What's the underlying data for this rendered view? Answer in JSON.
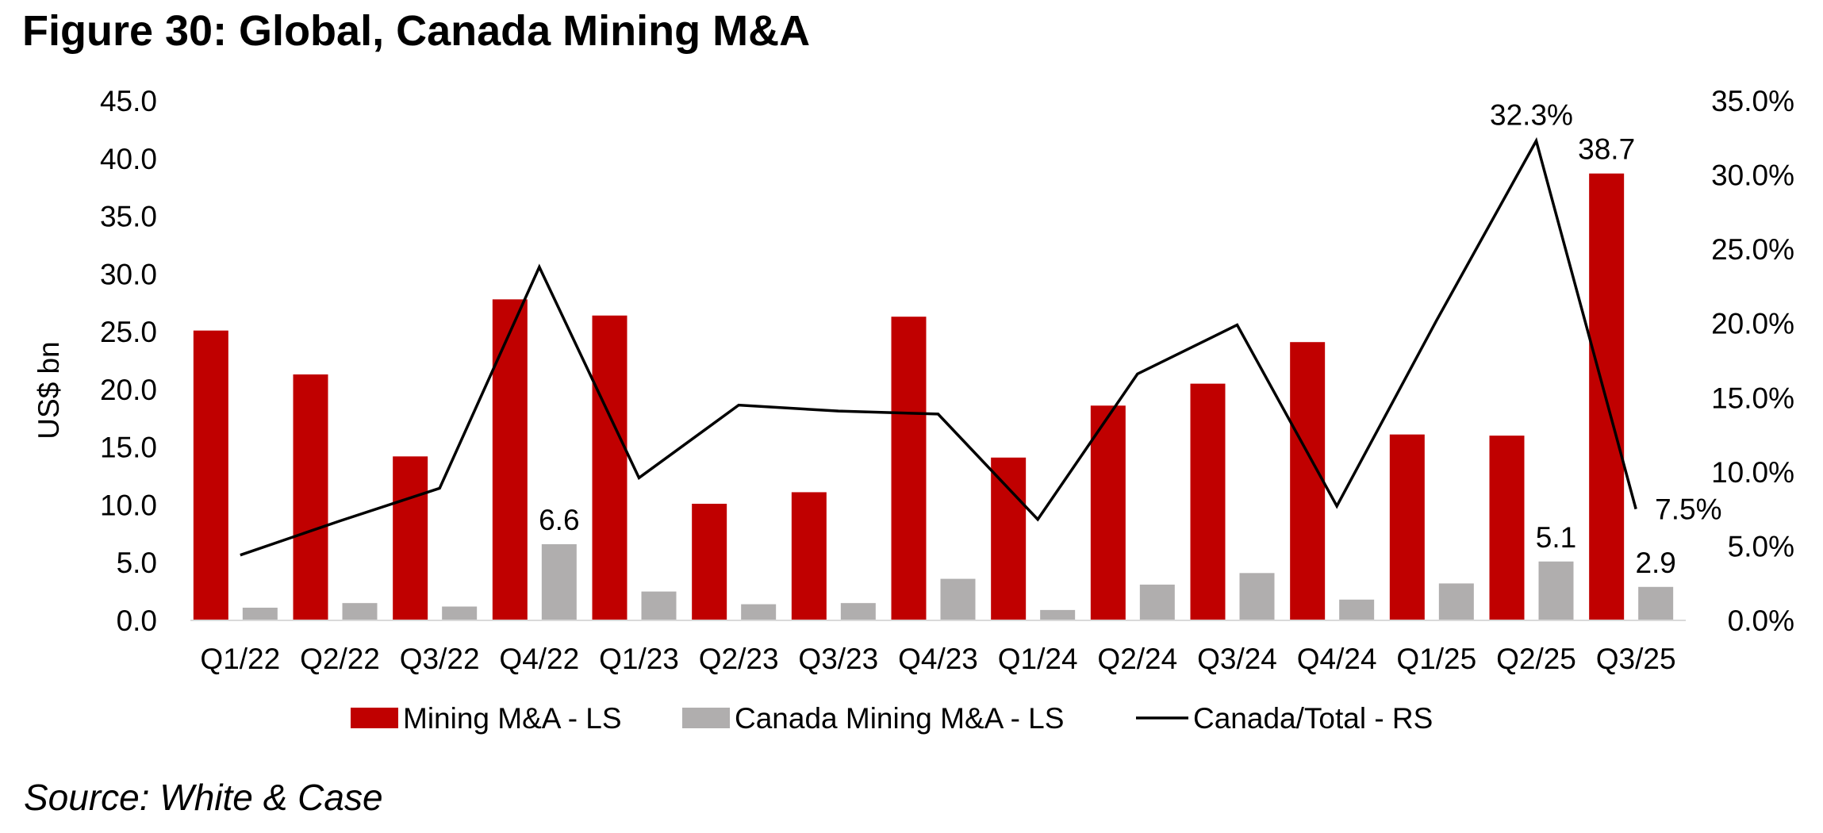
{
  "title": "Figure 30: Global, Canada Mining M&A",
  "source": "Source: White & Case",
  "chart_data": {
    "type": "bar",
    "categories": [
      "Q1/22",
      "Q2/22",
      "Q3/22",
      "Q4/22",
      "Q1/23",
      "Q2/23",
      "Q3/23",
      "Q4/23",
      "Q1/24",
      "Q2/24",
      "Q3/24",
      "Q4/24",
      "Q1/25",
      "Q2/25",
      "Q3/25"
    ],
    "series": [
      {
        "name": "Mining M&A - LS",
        "kind": "bar",
        "axis": "left",
        "color": "#c00000",
        "values": [
          25.1,
          21.3,
          14.2,
          27.8,
          26.4,
          10.1,
          11.1,
          26.3,
          14.1,
          18.6,
          20.5,
          24.1,
          16.1,
          16.0,
          38.7
        ]
      },
      {
        "name": "Canada Mining M&A - LS",
        "kind": "bar",
        "axis": "left",
        "color": "#b0aeae",
        "values": [
          1.1,
          1.5,
          1.2,
          6.6,
          2.5,
          1.4,
          1.5,
          3.6,
          0.9,
          3.1,
          4.1,
          1.8,
          3.2,
          5.1,
          2.9
        ]
      },
      {
        "name": "Canada/Total - RS",
        "kind": "line",
        "axis": "right",
        "color": "#000000",
        "values": [
          4.4,
          6.7,
          8.9,
          23.8,
          9.6,
          14.5,
          14.1,
          13.9,
          6.8,
          16.6,
          19.9,
          7.7,
          20.2,
          32.3,
          7.5
        ]
      }
    ],
    "ylabel": "US$ bn",
    "ylim": [
      0,
      45
    ],
    "y_ticks": [
      "0.0",
      "5.0",
      "10.0",
      "15.0",
      "20.0",
      "25.0",
      "30.0",
      "35.0",
      "40.0",
      "45.0"
    ],
    "y2lim": [
      0,
      35
    ],
    "y2_ticks": [
      "0.0%",
      "5.0%",
      "10.0%",
      "15.0%",
      "20.0%",
      "25.0%",
      "30.0%",
      "35.0%"
    ],
    "annotations": [
      {
        "series": 0,
        "index": 14,
        "label": "38.7"
      },
      {
        "series": 1,
        "index": 3,
        "label": "6.6"
      },
      {
        "series": 1,
        "index": 13,
        "label": "5.1"
      },
      {
        "series": 1,
        "index": 14,
        "label": "2.9"
      },
      {
        "series": 2,
        "index": 13,
        "label": "32.3%"
      },
      {
        "series": 2,
        "index": 14,
        "label": "7.5%"
      }
    ],
    "legend_position": "bottom",
    "grid": false
  }
}
